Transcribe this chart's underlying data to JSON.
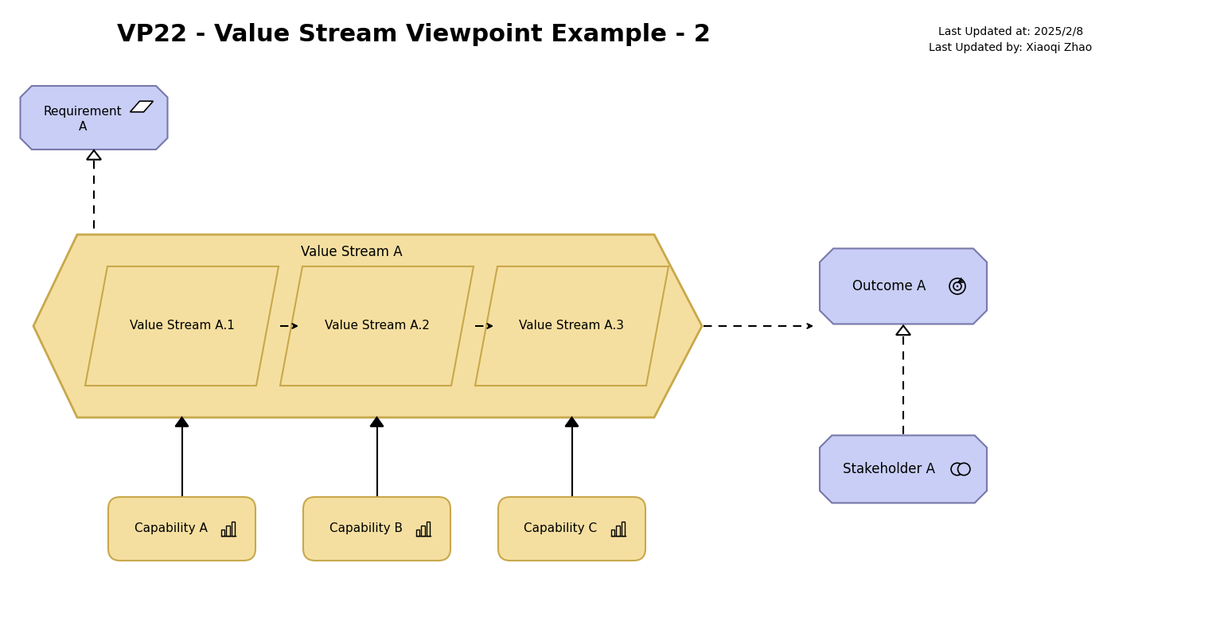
{
  "title": "VP22 - Value Stream Viewpoint Example - 2",
  "subtitle1": "Last Updated at: 2025/2/8",
  "subtitle2": "Last Updated by: Xiaoqi Zhao",
  "bg_color": "#ffffff",
  "lavender_fill": "#c8cef5",
  "lavender_border": "#7878aa",
  "orange_fill": "#f5dfa0",
  "orange_border": "#c8a84b",
  "text_color": "#000000",
  "value_stream_outer_label": "Value Stream A",
  "vs1_label": "Value Stream A.1",
  "vs2_label": "Value Stream A.2",
  "vs3_label": "Value Stream A.3",
  "cap_a_label": "Capability A",
  "cap_b_label": "Capability B",
  "cap_c_label": "Capability C",
  "outcome_label": "Outcome A",
  "stakeholder_label": "Stakeholder A",
  "title_fontsize": 22,
  "label_fontsize": 12,
  "small_fontsize": 11
}
